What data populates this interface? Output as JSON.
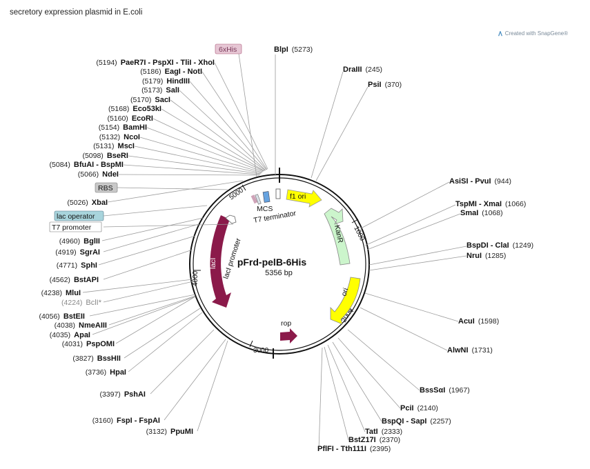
{
  "title": "secretory expression plasmid in E.coli",
  "credit": "Created with SnapGene®",
  "plasmid": {
    "name": "pFrd-pelB-6His",
    "size": "5356 bp"
  },
  "ticks": [
    "1000",
    "2000",
    "3000",
    "4000",
    "5000"
  ],
  "features": {
    "f1_ori": "f1 ori",
    "kanR": "KanR",
    "ori": "ori",
    "rop": "rop",
    "lacI": "lacI",
    "lacI_promoter": "lacI promoter",
    "mcs": "MCS",
    "t7_terminator": "T7 terminator",
    "his_tag": "6xHis",
    "rbs": "RBS",
    "lac_operator": "lac operator",
    "t7_promoter": "T7 promoter"
  },
  "sites_left": [
    {
      "pos": "(5194)",
      "name": "PaeR7I - PspXI - TliI - XhoI"
    },
    {
      "pos": "(5186)",
      "name": "EagI - NotI"
    },
    {
      "pos": "(5179)",
      "name": "HindIII"
    },
    {
      "pos": "(5173)",
      "name": "SalI"
    },
    {
      "pos": "(5170)",
      "name": "SacI"
    },
    {
      "pos": "(5168)",
      "name": "Eco53kI"
    },
    {
      "pos": "(5160)",
      "name": "EcoRI"
    },
    {
      "pos": "(5154)",
      "name": "BamHI"
    },
    {
      "pos": "(5132)",
      "name": "NcoI"
    },
    {
      "pos": "(5131)",
      "name": "MscI"
    },
    {
      "pos": "(5098)",
      "name": "BseRI"
    },
    {
      "pos": "(5084)",
      "name": "BfuAI - BspMI"
    },
    {
      "pos": "(5066)",
      "name": "NdeI"
    },
    {
      "pos": "(5026)",
      "name": "XbaI"
    },
    {
      "pos": "(4960)",
      "name": "BglII"
    },
    {
      "pos": "(4919)",
      "name": "SgrAI"
    },
    {
      "pos": "(4771)",
      "name": "SphI"
    },
    {
      "pos": "(4562)",
      "name": "BstAPI"
    },
    {
      "pos": "(4238)",
      "name": "MluI"
    },
    {
      "pos": "(4224)",
      "name": "BclI*"
    },
    {
      "pos": "(4056)",
      "name": "BstEII"
    },
    {
      "pos": "(4038)",
      "name": "NmeAIII"
    },
    {
      "pos": "(4035)",
      "name": "ApaI"
    },
    {
      "pos": "(4031)",
      "name": "PspOMI"
    },
    {
      "pos": "(3827)",
      "name": "BssHII"
    },
    {
      "pos": "(3736)",
      "name": "HpaI"
    },
    {
      "pos": "(3397)",
      "name": "PshAI"
    },
    {
      "pos": "(3160)",
      "name": "FspI - FspAI"
    },
    {
      "pos": "(3132)",
      "name": "PpuMI"
    }
  ],
  "sites_right": [
    {
      "name": "BlpI",
      "pos": "(5273)"
    },
    {
      "name": "DraIII",
      "pos": "(245)"
    },
    {
      "name": "PsiI",
      "pos": "(370)"
    },
    {
      "name": "AsiSI - PvuI",
      "pos": "(944)"
    },
    {
      "name": "TspMI - XmaI",
      "pos": "(1066)"
    },
    {
      "name": "SmaI",
      "pos": "(1068)"
    },
    {
      "name": "BspDI - ClaI",
      "pos": "(1249)"
    },
    {
      "name": "NruI",
      "pos": "(1285)"
    },
    {
      "name": "AcuI",
      "pos": "(1598)"
    },
    {
      "name": "AlwNI",
      "pos": "(1731)"
    },
    {
      "name": "BssSαI",
      "pos": "(1967)"
    },
    {
      "name": "PciI",
      "pos": "(2140)"
    },
    {
      "name": "BspQI - SapI",
      "pos": "(2257)"
    },
    {
      "name": "TatI",
      "pos": "(2333)"
    },
    {
      "name": "BstZ17I",
      "pos": "(2370)"
    },
    {
      "name": "PflFI - Tth111I",
      "pos": "(2395)"
    }
  ]
}
